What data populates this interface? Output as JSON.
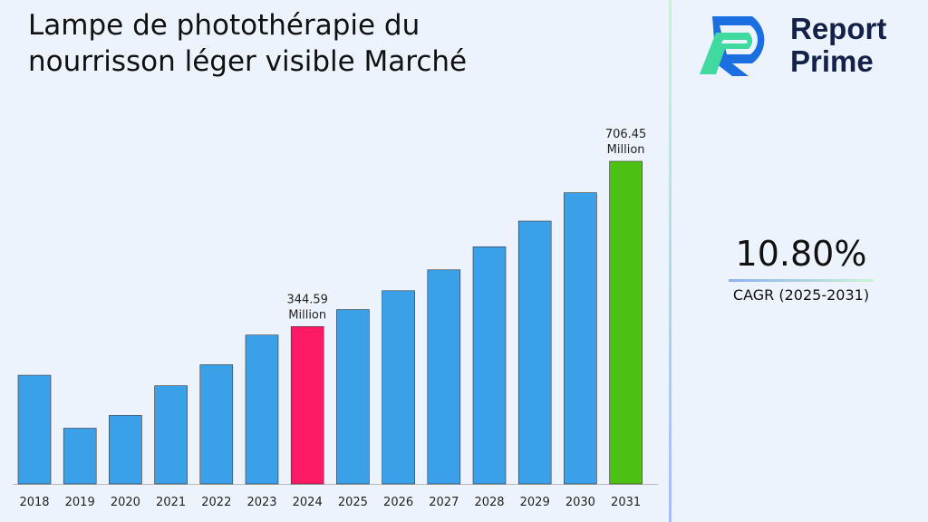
{
  "colors": {
    "default_bar": "#3aa0e8",
    "highlight_bar": "#ff1a66",
    "final_bar": "#4cc114",
    "background": "#edf3fd"
  },
  "brand": {
    "name_line1": "Report",
    "name_line2": "Prime"
  },
  "cagr": {
    "value": "10.80%",
    "label": "CAGR (2025-2031)"
  },
  "chart_data": {
    "type": "bar",
    "title": "Lampe de photothérapie du nourrisson léger visible Marché",
    "xlabel": "",
    "ylabel": "",
    "grid": false,
    "categories": [
      "2018",
      "2019",
      "2020",
      "2021",
      "2022",
      "2023",
      "2024",
      "2025",
      "2026",
      "2027",
      "2028",
      "2029",
      "2030",
      "2031"
    ],
    "values": [
      238,
      122,
      150,
      215,
      261,
      326,
      344.59,
      381.8,
      423.1,
      468.8,
      519.4,
      575.5,
      637.6,
      706.45
    ],
    "ylim": [
      0,
      706.45
    ],
    "data_labels": [
      {
        "category": "2024",
        "line1": "344.59",
        "line2": "Million"
      },
      {
        "category": "2031",
        "line1": "706.45",
        "line2": "Million"
      }
    ]
  }
}
